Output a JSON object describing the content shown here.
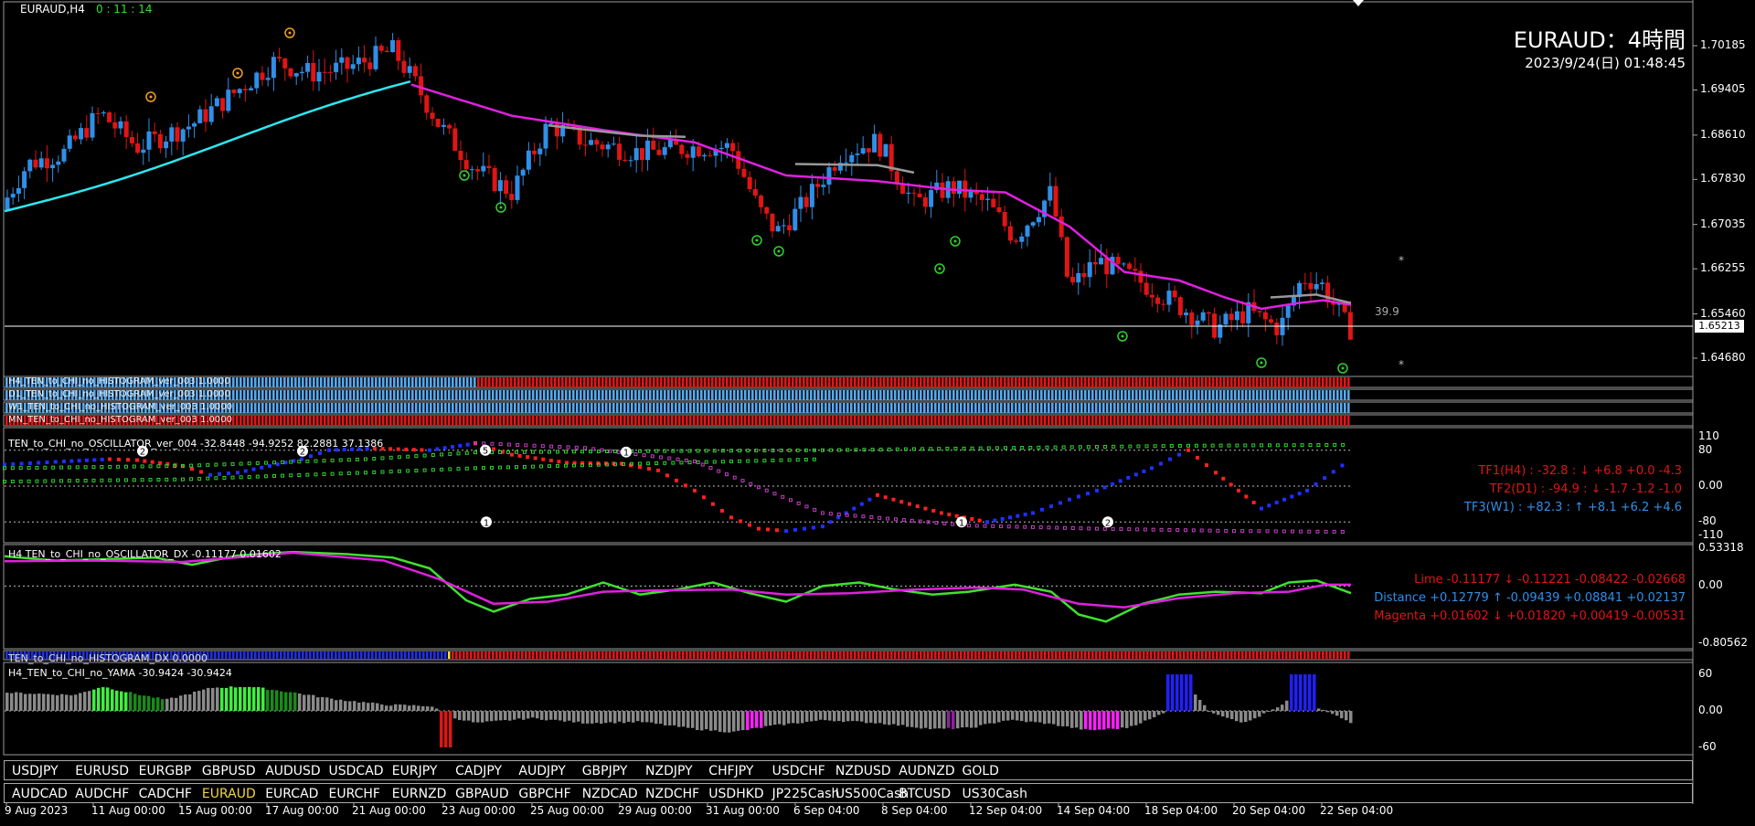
{
  "main": {
    "symbol_label": "EURAUD,H4",
    "timer": "0 : 11 : 14",
    "title": "EURAUD：4時間",
    "datetime": "2023/9/24(日) 01:48:45",
    "current_price": "1.65213",
    "note_value": "39.9",
    "yaxis": [
      "1.70185",
      "1.69405",
      "1.68610",
      "1.67830",
      "1.67035",
      "1.66255",
      "1.65460",
      "1.64680"
    ],
    "bull_color": "#2f8fe8",
    "bear_color": "#e01515",
    "ma_fast_color": "#2ee6f0",
    "ma_slow_color": "#e020e0"
  },
  "histograms": [
    {
      "label": "H4_TEN_to_CHI_no_HISTOGRAM_ver_003 1.0000"
    },
    {
      "label": "D1_TEN_to_CHI_no_HISTOGRAM_ver_003 1.0000"
    },
    {
      "label": "W1_TEN_to_CHI_no_HISTOGRAM_ver_003 1.0000"
    },
    {
      "label": "MN_TEN_to_CHI_no_HISTOGRAM_ver_003 1.0000"
    }
  ],
  "oscillator": {
    "label": "TEN_to_CHI_no_OSCILLATOR_ver_004 -32.8448 -94.9252 82.2881 37.1386",
    "yaxis": [
      "110",
      "80",
      "0.00",
      "-80",
      "-110"
    ],
    "tf1": "TF1(H4) : -32.8 : ↓ +6.8 +0.0 -4.3",
    "tf2": "TF2(D1) : -94.9 : ↓ -1.7 -1.2 -1.0",
    "tf3": "TF3(W1) : +82.3 : ↑ +8.1 +6.2 +4.6"
  },
  "oscillator_dx": {
    "label": "H4 TEN_to_CHI_no_OSCILLATOR_DX -0.11177 0.01602",
    "yaxis": [
      "0.53318",
      "0.00",
      "-0.80562"
    ],
    "lime": "Lime -0.11177 ↓ -0.11221 -0.08422 -0.02668",
    "distance": "Distance +0.12779 ↑ -0.09439 +0.08841 +0.02137",
    "magenta": "Magenta +0.01602 ↓ +0.01820 +0.00419 -0.00531"
  },
  "histogram_dx": {
    "label": "TEN_to_CHI_no_HISTOGRAM_DX 0.0000"
  },
  "yama": {
    "label": "H4_TEN_to_CHI_no_YAMA -30.9424 -30.9424",
    "yaxis": [
      "60",
      "0.00",
      "-60"
    ]
  },
  "symbols_row1": [
    "USDJPY",
    "EURUSD",
    "EURGBP",
    "GBPUSD",
    "AUDUSD",
    "USDCAD",
    "EURJPY",
    "CADJPY",
    "AUDJPY",
    "GBPJPY",
    "NZDJPY",
    "CHFJPY",
    "USDCHF",
    "NZDUSD",
    "AUDNZD",
    "GOLD"
  ],
  "symbols_row2": [
    "AUDCAD",
    "AUDCHF",
    "CADCHF",
    "EURAUD",
    "EURCAD",
    "EURCHF",
    "EURNZD",
    "GBPAUD",
    "GBPCHF",
    "NZDCAD",
    "NZDCHF",
    "USDHKD",
    "JP225Cash",
    "US500Cash",
    "BTCUSD",
    "US30Cash"
  ],
  "active_symbol": "EURAUD",
  "xaxis": [
    "9 Aug 2023",
    "11 Aug 00:00",
    "15 Aug 00:00",
    "17 Aug 00:00",
    "21 Aug 00:00",
    "23 Aug 00:00",
    "25 Aug 00:00",
    "29 Aug 00:00",
    "31 Aug 00:00",
    "6 Sep 04:00",
    "8 Sep 04:00",
    "12 Sep 04:00",
    "14 Sep 04:00",
    "18 Sep 04:00",
    "20 Sep 04:00",
    "22 Sep 04:00"
  ]
}
